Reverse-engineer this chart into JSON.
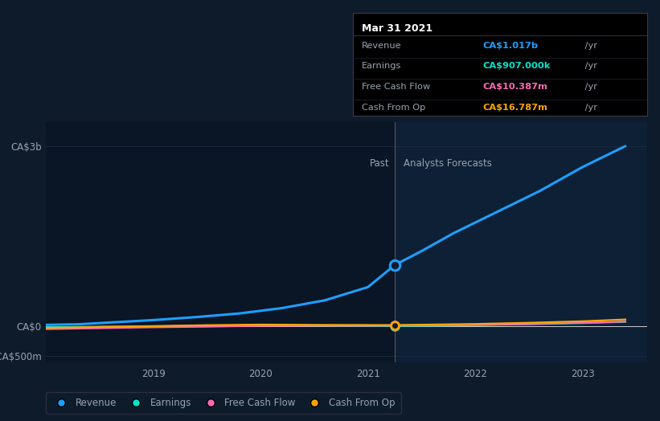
{
  "bg_color": "#0d1b2a",
  "title_box": "Mar 31 2021",
  "tooltip": {
    "rows": [
      {
        "label": "Revenue",
        "value": "CA$1.017b",
        "suffix": " /yr",
        "color": "#1e9fff"
      },
      {
        "label": "Earnings",
        "value": "CA$907.000k",
        "suffix": " /yr",
        "color": "#00e5cc"
      },
      {
        "label": "Free Cash Flow",
        "value": "CA$10.387m",
        "suffix": " /yr",
        "color": "#ff69b4"
      },
      {
        "label": "Cash From Op",
        "value": "CA$16.787m",
        "suffix": " /yr",
        "color": "#ffa500"
      }
    ]
  },
  "xticks": [
    2019,
    2020,
    2021,
    2022,
    2023
  ],
  "divider_x": 2021.25,
  "revenue": {
    "x_past": [
      2018.0,
      2018.3,
      2018.6,
      2019.0,
      2019.4,
      2019.8,
      2020.2,
      2020.6,
      2021.0,
      2021.25
    ],
    "y_past": [
      20,
      30,
      60,
      100,
      150,
      210,
      300,
      430,
      650,
      1017
    ],
    "x_future": [
      2021.25,
      2021.5,
      2021.8,
      2022.2,
      2022.6,
      2023.0,
      2023.4
    ],
    "y_future": [
      1017,
      1250,
      1550,
      1900,
      2250,
      2650,
      3000
    ],
    "color": "#1e9fff",
    "dot_x": 2021.25,
    "dot_y": 1017
  },
  "earnings": {
    "x_past": [
      2018.0,
      2018.5,
      2019.0,
      2019.5,
      2020.0,
      2020.5,
      2021.0,
      2021.25
    ],
    "y_past": [
      -20,
      -10,
      -5,
      5,
      15,
      10,
      5,
      0.9
    ],
    "x_future": [
      2021.25,
      2022.0,
      2022.5,
      2023.0,
      2023.4
    ],
    "y_future": [
      0.9,
      15,
      30,
      50,
      70
    ],
    "color": "#00e5cc",
    "dot_x": 2021.25,
    "dot_y": 0.9
  },
  "free_cash_flow": {
    "x_past": [
      2018.0,
      2018.5,
      2019.0,
      2019.5,
      2020.0,
      2020.5,
      2021.0,
      2021.25
    ],
    "y_past": [
      -50,
      -35,
      -20,
      -10,
      5,
      10,
      8,
      10.387
    ],
    "x_future": [
      2021.25,
      2022.0,
      2022.5,
      2023.0,
      2023.4
    ],
    "y_future": [
      10.387,
      20,
      35,
      55,
      75
    ],
    "color": "#ff69b4",
    "dot_x": 2021.25,
    "dot_y": 10.387
  },
  "cash_from_op": {
    "x_past": [
      2018.0,
      2018.5,
      2019.0,
      2019.5,
      2020.0,
      2020.5,
      2021.0,
      2021.25
    ],
    "y_past": [
      -30,
      -15,
      0,
      15,
      25,
      20,
      18,
      16.787
    ],
    "x_future": [
      2021.25,
      2022.0,
      2022.5,
      2023.0,
      2023.4
    ],
    "y_future": [
      16.787,
      35,
      55,
      80,
      110
    ],
    "color": "#ffa500",
    "dot_x": 2021.25,
    "dot_y": 16.787
  },
  "ylim": [
    -600,
    3400
  ],
  "xlim": [
    2018.0,
    2023.6
  ],
  "legend_items": [
    {
      "label": "Revenue",
      "color": "#1e9fff"
    },
    {
      "label": "Earnings",
      "color": "#00e5cc"
    },
    {
      "label": "Free Cash Flow",
      "color": "#ff69b4"
    },
    {
      "label": "Cash From Op",
      "color": "#ffa500"
    }
  ],
  "text_color": "#9ba3b0",
  "white": "#ffffff",
  "grid_color": "#1e2d3d",
  "zero_line_color": "#cccccc",
  "divider_color": "#555566"
}
